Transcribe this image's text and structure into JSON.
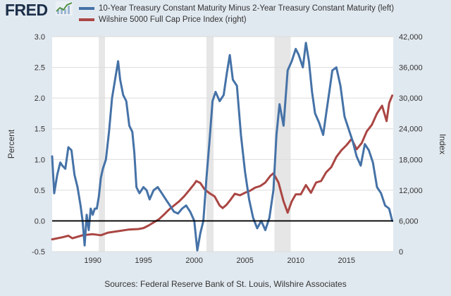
{
  "header": {
    "logo_text": "FRED",
    "logo_icon": "fred-chart-icon"
  },
  "source": "Sources: Federal Reserve Bank of St. Louis, Wilshire Associates",
  "colors": {
    "background": "#e1e9f0",
    "plot_background": "#ffffff",
    "spread": "#4572a7",
    "wilshire": "#aa4643",
    "recession": "#e6e6e6",
    "zero_line": "#000000"
  },
  "chart_data": {
    "type": "line",
    "title": "",
    "xlabel": "",
    "ylabel_left": "Percent",
    "ylabel_right": "Index",
    "xlim": [
      1986.0,
      2019.6
    ],
    "ylim_left": [
      -0.5,
      3.0
    ],
    "ylim_right": [
      0,
      42000
    ],
    "x_ticks": [
      1990,
      1995,
      2000,
      2005,
      2010,
      2015
    ],
    "x_tick_labels": [
      "1990",
      "1995",
      "2000",
      "2005",
      "2010",
      "2015"
    ],
    "y_ticks_left": [
      -0.5,
      0.0,
      0.5,
      1.0,
      1.5,
      2.0,
      2.5,
      3.0
    ],
    "y_tick_labels_left": [
      "-0.5",
      "0.0",
      "0.5",
      "1.0",
      "1.5",
      "2.0",
      "2.5",
      "3.0"
    ],
    "y_ticks_right": [
      0,
      6000,
      12000,
      18000,
      24000,
      30000,
      36000,
      42000
    ],
    "y_tick_labels_right": [
      "0",
      "6,000",
      "12,000",
      "18,000",
      "24,000",
      "30,000",
      "36,000",
      "42,000"
    ],
    "grid": true,
    "legend_position": "top",
    "recessions": [
      [
        1990.6,
        1991.2
      ],
      [
        2001.2,
        2001.9
      ],
      [
        2007.9,
        2009.5
      ]
    ],
    "reference_line": 0.0,
    "series": [
      {
        "name": "10-Year Treasury Constant Maturity Minus 2-Year Treasury Constant Maturity (left)",
        "axis": "left",
        "color": "#4572a7",
        "x": [
          1986.0,
          1986.2,
          1986.5,
          1986.8,
          1987.0,
          1987.3,
          1987.6,
          1987.9,
          1988.2,
          1988.5,
          1988.8,
          1989.0,
          1989.2,
          1989.4,
          1989.6,
          1989.8,
          1990.0,
          1990.2,
          1990.4,
          1990.6,
          1990.8,
          1991.0,
          1991.3,
          1991.6,
          1991.9,
          1992.2,
          1992.5,
          1992.7,
          1993.0,
          1993.3,
          1993.6,
          1993.9,
          1994.1,
          1994.3,
          1994.6,
          1995.0,
          1995.3,
          1995.6,
          1996.0,
          1996.4,
          1996.8,
          1997.2,
          1997.6,
          1998.0,
          1998.4,
          1998.8,
          1999.2,
          1999.6,
          2000.0,
          2000.3,
          2000.6,
          2000.9,
          2001.2,
          2001.5,
          2001.8,
          2002.1,
          2002.5,
          2002.9,
          2003.2,
          2003.5,
          2003.8,
          2004.2,
          2004.6,
          2005.0,
          2005.4,
          2005.8,
          2006.2,
          2006.6,
          2007.0,
          2007.4,
          2007.8,
          2008.1,
          2008.4,
          2008.8,
          2009.2,
          2009.6,
          2010.0,
          2010.3,
          2010.7,
          2011.0,
          2011.3,
          2011.6,
          2011.9,
          2012.3,
          2012.7,
          2013.0,
          2013.3,
          2013.6,
          2014.0,
          2014.4,
          2014.8,
          2015.2,
          2015.6,
          2016.0,
          2016.4,
          2016.8,
          2017.2,
          2017.6,
          2018.0,
          2018.4,
          2018.8,
          2019.2,
          2019.5
        ],
        "values": [
          1.05,
          0.45,
          0.75,
          0.95,
          0.9,
          0.85,
          1.2,
          1.15,
          0.75,
          0.55,
          0.25,
          0.0,
          -0.4,
          0.1,
          -0.15,
          0.2,
          0.1,
          0.2,
          0.2,
          0.4,
          0.7,
          0.85,
          1.0,
          1.45,
          2.0,
          2.3,
          2.6,
          2.3,
          2.05,
          1.95,
          1.55,
          1.45,
          1.1,
          0.55,
          0.45,
          0.55,
          0.5,
          0.35,
          0.5,
          0.55,
          0.45,
          0.35,
          0.25,
          0.15,
          0.12,
          0.2,
          0.25,
          0.15,
          0.0,
          -0.48,
          -0.2,
          0.0,
          0.7,
          1.3,
          1.95,
          2.1,
          1.95,
          2.05,
          2.4,
          2.7,
          2.3,
          2.2,
          1.4,
          0.8,
          0.35,
          0.05,
          -0.12,
          0.0,
          -0.15,
          0.05,
          0.5,
          1.4,
          1.9,
          1.55,
          2.45,
          2.6,
          2.8,
          2.7,
          2.5,
          2.9,
          2.6,
          2.1,
          1.75,
          1.6,
          1.4,
          1.75,
          2.1,
          2.45,
          2.5,
          2.2,
          1.7,
          1.5,
          1.3,
          1.05,
          0.9,
          1.25,
          1.15,
          0.95,
          0.55,
          0.45,
          0.25,
          0.2,
          0.0
        ]
      },
      {
        "name": "Wilshire 5000 Full Cap Price Index (right)",
        "axis": "right",
        "color": "#aa4643",
        "x": [
          1986.0,
          1987.0,
          1987.6,
          1988.0,
          1989.0,
          1990.0,
          1990.8,
          1991.5,
          1992.5,
          1993.5,
          1994.5,
          1995.0,
          1995.5,
          1996.0,
          1996.5,
          1997.0,
          1997.5,
          1998.0,
          1998.5,
          1999.0,
          1999.5,
          2000.0,
          2000.2,
          2000.6,
          2001.0,
          2001.5,
          2002.0,
          2002.5,
          2002.8,
          2003.2,
          2003.6,
          2004.0,
          2004.5,
          2005.0,
          2005.5,
          2006.0,
          2006.5,
          2007.0,
          2007.5,
          2007.8,
          2008.3,
          2008.8,
          2009.2,
          2009.6,
          2010.0,
          2010.5,
          2011.0,
          2011.5,
          2012.0,
          2012.5,
          2013.0,
          2013.5,
          2014.0,
          2014.5,
          2015.0,
          2015.5,
          2016.0,
          2016.5,
          2017.0,
          2017.5,
          2018.0,
          2018.5,
          2018.95,
          2019.2,
          2019.5
        ],
        "values": [
          2400,
          2800,
          3100,
          2600,
          3200,
          3400,
          3200,
          3700,
          4000,
          4300,
          4400,
          4600,
          5100,
          5700,
          6300,
          7200,
          8200,
          9000,
          9800,
          10800,
          12000,
          13200,
          13800,
          13400,
          12200,
          11400,
          10800,
          9000,
          8500,
          9200,
          10200,
          11300,
          11000,
          11500,
          11900,
          12500,
          12800,
          13500,
          14800,
          15300,
          13500,
          9800,
          7600,
          9800,
          11200,
          11200,
          13000,
          11500,
          13500,
          13800,
          15500,
          16500,
          18500,
          19800,
          20800,
          22000,
          20000,
          21200,
          23500,
          24800,
          27000,
          28500,
          25500,
          29000,
          30500
        ]
      }
    ]
  }
}
